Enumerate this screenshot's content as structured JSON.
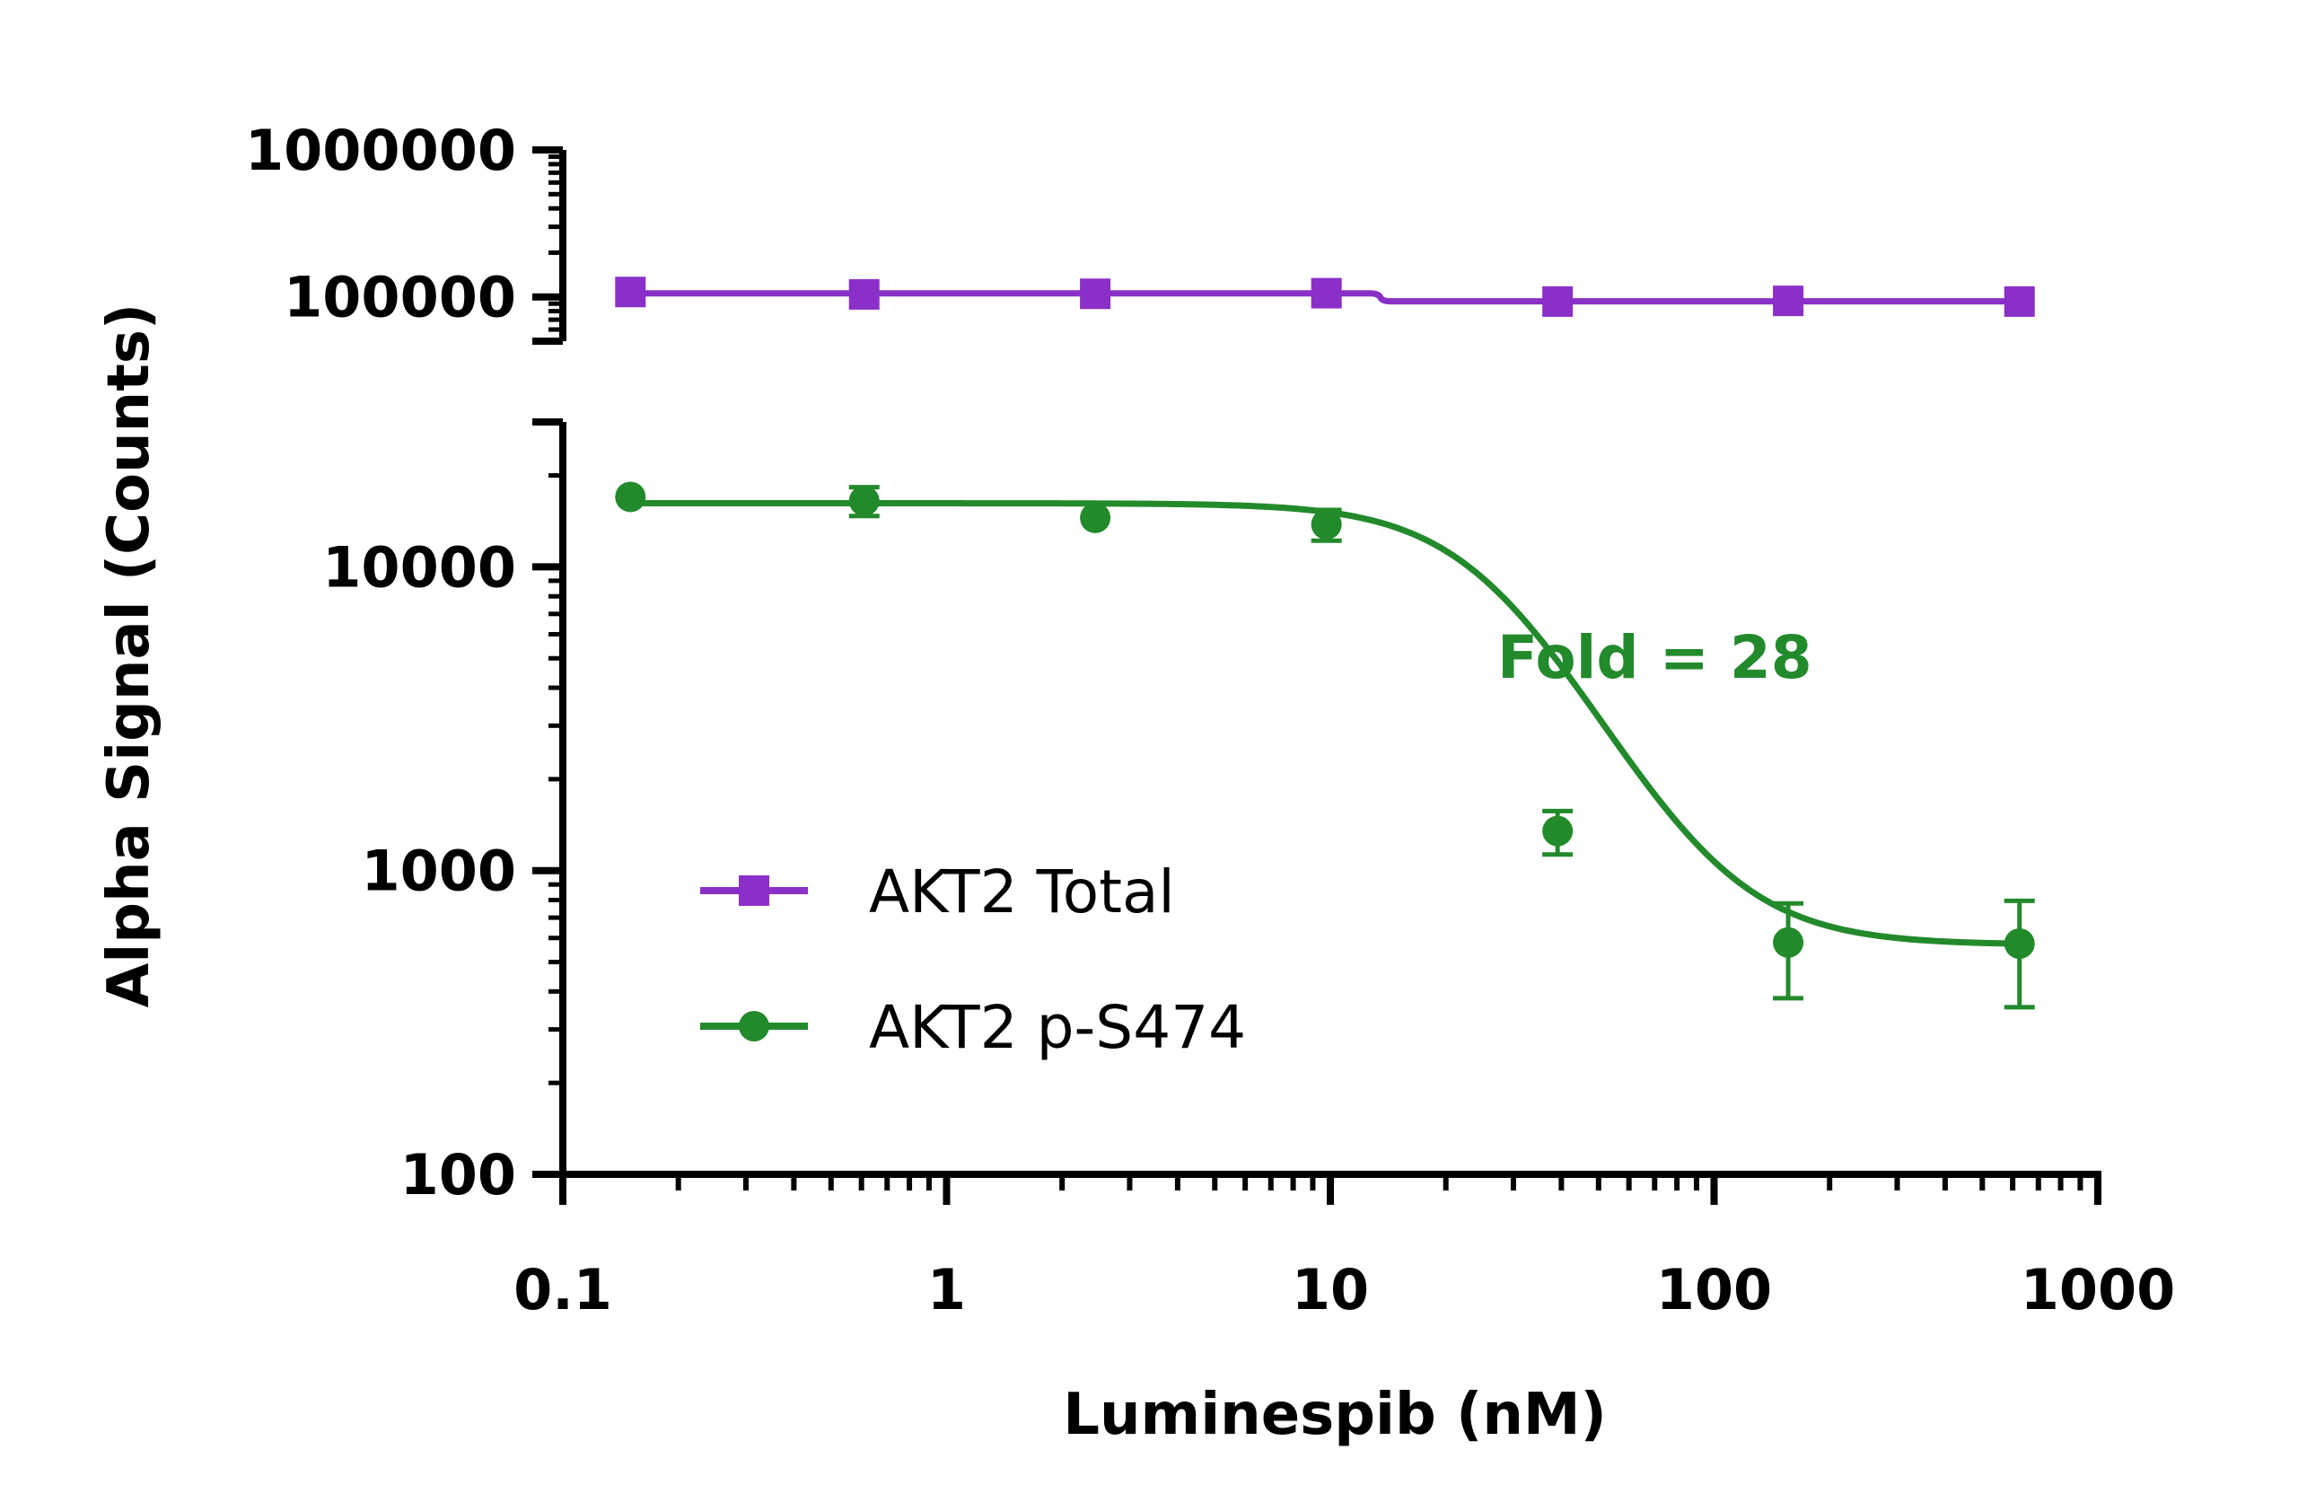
{
  "chart_data": {
    "type": "line",
    "xlabel": "Luminespib (nM)",
    "ylabel": "Alpha Signal (Counts)",
    "x_scale": "log",
    "y_scale": "log",
    "xlim": [
      0.1,
      1000
    ],
    "x_ticks": [
      "0.1",
      "1",
      "10",
      "100",
      "1000"
    ],
    "y_axis_break": true,
    "y_segments": [
      {
        "name": "upper",
        "ylim": [
          50000,
          1000000
        ],
        "ticks": [
          "100000",
          "1000000"
        ]
      },
      {
        "name": "lower",
        "ylim": [
          100,
          30000
        ],
        "ticks": [
          "100",
          "1000",
          "10000"
        ]
      }
    ],
    "series": [
      {
        "name": "AKT2 Total",
        "color": "#8b2fc9",
        "marker": "square",
        "x": [
          0.15,
          0.61,
          2.44,
          9.77,
          39.1,
          156,
          625
        ],
        "y": [
          108000,
          104000,
          105000,
          106000,
          93000,
          94000,
          93000
        ]
      },
      {
        "name": "AKT2 p-S474",
        "color": "#238a2c",
        "marker": "circle",
        "x": [
          0.15,
          0.61,
          2.44,
          9.77,
          39.1,
          156,
          625
        ],
        "y": [
          17000,
          16500,
          14500,
          13800,
          1350,
          580,
          575
        ],
        "y_err": [
          0,
          1800,
          0,
          1600,
          220,
          200,
          220
        ]
      }
    ],
    "annotations": [
      {
        "text": "Fold = 28",
        "color": "#238a2c"
      }
    ],
    "legend_position": "lower-left"
  }
}
